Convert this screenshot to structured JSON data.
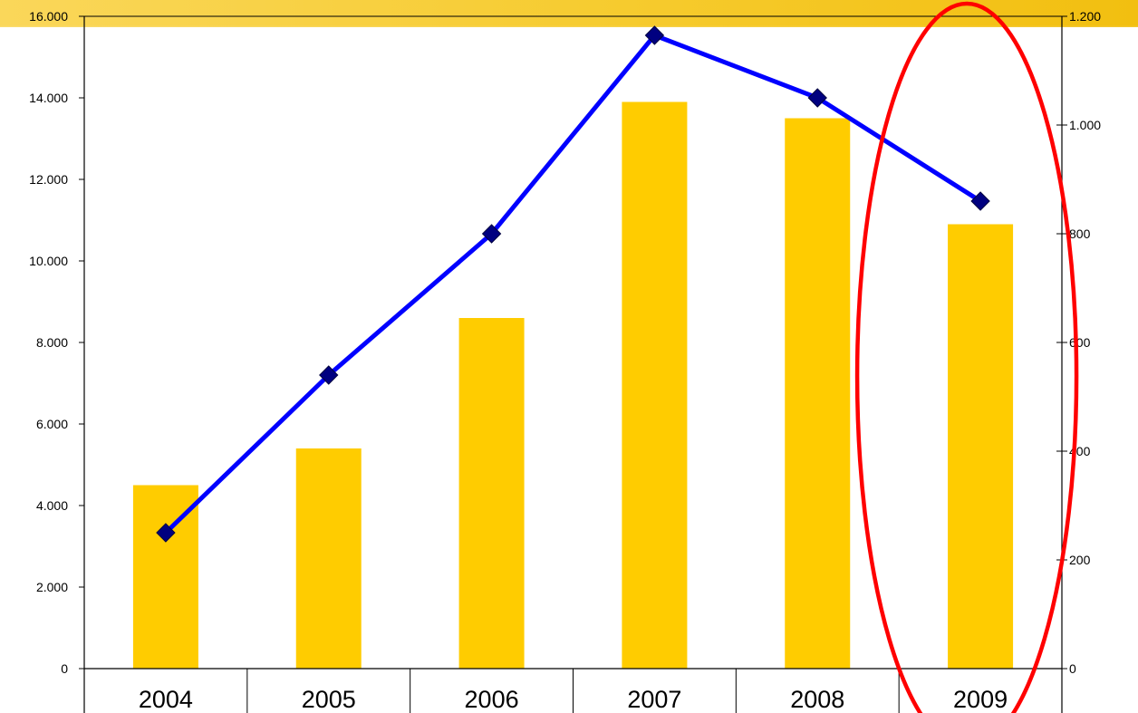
{
  "chart_data": {
    "type": "bar",
    "categories": [
      "2004",
      "2005",
      "2006",
      "2007",
      "2008",
      "2009"
    ],
    "series": [
      {
        "type": "bar",
        "axis": "left",
        "color": "#FFCC00",
        "values": [
          4500,
          5400,
          8600,
          13900,
          13500,
          10900
        ]
      },
      {
        "type": "line",
        "axis": "right",
        "color": "#0000FF",
        "marker_color": "#000080",
        "values": [
          250,
          540,
          800,
          1165,
          1050,
          860
        ]
      }
    ],
    "left_axis": {
      "ylim": [
        0,
        16000
      ],
      "ticks": [
        {
          "value": 0,
          "label": "0"
        },
        {
          "value": 2000,
          "label": "2.000"
        },
        {
          "value": 4000,
          "label": "4.000"
        },
        {
          "value": 6000,
          "label": "6.000"
        },
        {
          "value": 8000,
          "label": "8.000"
        },
        {
          "value": 10000,
          "label": "10.000"
        },
        {
          "value": 12000,
          "label": "12.000"
        },
        {
          "value": 14000,
          "label": "14.000"
        },
        {
          "value": 16000,
          "label": "16.000"
        }
      ]
    },
    "right_axis": {
      "ylim": [
        0,
        1200
      ],
      "ticks": [
        {
          "value": 0,
          "label": "0"
        },
        {
          "value": 200,
          "label": "200"
        },
        {
          "value": 400,
          "label": "400"
        },
        {
          "value": 600,
          "label": "600"
        },
        {
          "value": 800,
          "label": "800"
        },
        {
          "value": 1000,
          "label": "1.000"
        },
        {
          "value": 1200,
          "label": "1.200"
        }
      ]
    },
    "annotation": {
      "shape": "ellipse",
      "target_category": "2009",
      "color": "#FF0000"
    },
    "header_band_color": "#F5C518",
    "grid": false,
    "legend": "none"
  }
}
